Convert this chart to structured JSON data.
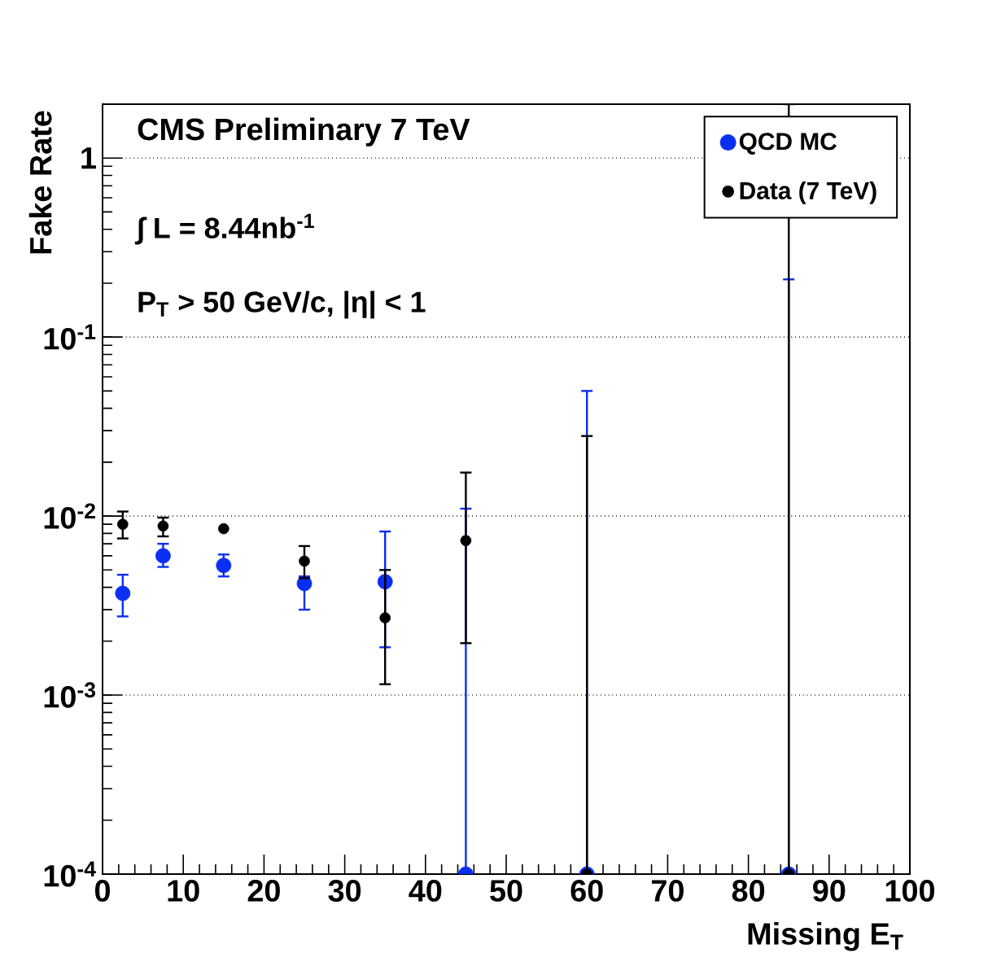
{
  "chart_data": {
    "type": "scatter",
    "xlabel": "Missing E$_{T}$",
    "ylabel": "Fake Rate",
    "annotations": [
      "CMS Preliminary 7 TeV",
      "∫ L = 8.44nb$^{-1}$",
      "P$_{T}$ > 50 GeV/c, |η| < 1"
    ],
    "xlim": [
      0,
      100
    ],
    "xticks": [
      0,
      10,
      20,
      30,
      40,
      50,
      60,
      70,
      80,
      90,
      100
    ],
    "ylim": [
      0.0001,
      2
    ],
    "yticks": [
      {
        "value": 0.0001,
        "label": "10$^{-4}$"
      },
      {
        "value": 0.001,
        "label": "10$^{-3}$"
      },
      {
        "value": 0.01,
        "label": "10$^{-2}$"
      },
      {
        "value": 0.1,
        "label": "10$^{-1}$"
      },
      1
    ],
    "log": "y",
    "grid": "y",
    "legend": "top right",
    "marker": "circle",
    "series": [
      {
        "name": "QCD MC",
        "color": "#0b2ff2",
        "x": [
          2.5,
          7.5,
          15,
          25,
          35,
          45,
          60,
          85
        ],
        "values": [
          0.0037,
          0.006,
          0.0053,
          0.0042,
          0.0043,
          0.0001,
          0.0001,
          0.0001
        ],
        "errors": [
          [
            0.00275,
            0.0047
          ],
          [
            0.0052,
            0.007
          ],
          [
            0.0046,
            0.0061
          ],
          [
            0.003,
            0.0046
          ],
          [
            0.00185,
            0.0082
          ],
          [
            0.0001,
            0.011
          ],
          [
            0.0001,
            0.05
          ],
          [
            0.0001,
            0.21
          ]
        ]
      },
      {
        "name": "Data (7 TeV)",
        "color": "#000000",
        "x": [
          2.5,
          7.5,
          15,
          25,
          35,
          45,
          60,
          85
        ],
        "values": [
          0.009,
          0.0088,
          0.0085,
          0.0056,
          0.0027,
          0.0073,
          0.0001,
          0.0001
        ],
        "errors": [
          [
            0.0075,
            0.0106
          ],
          [
            0.0077,
            0.0098
          ],
          null,
          [
            0.0045,
            0.0068
          ],
          [
            0.00115,
            0.005
          ],
          [
            0.00195,
            0.0175
          ],
          [
            0.0001,
            0.028
          ],
          [
            0.0001,
            2
          ]
        ]
      }
    ]
  }
}
